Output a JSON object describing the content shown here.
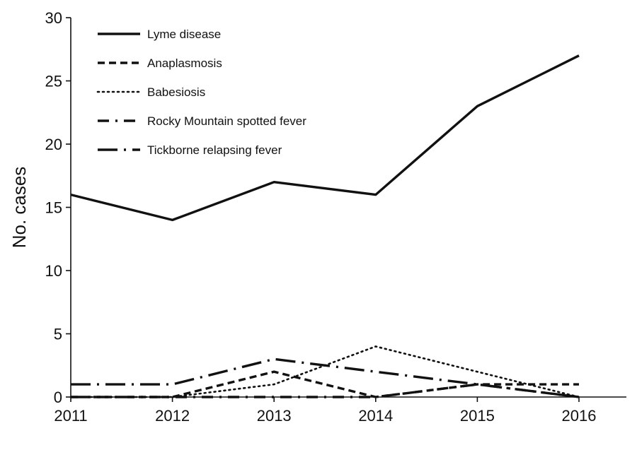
{
  "chart_data": {
    "type": "line",
    "ylabel": "No. cases",
    "xlabel": "",
    "title": "",
    "x": [
      "2011",
      "2012",
      "2013",
      "2014",
      "2015",
      "2016"
    ],
    "ylim": [
      0,
      30
    ],
    "yticks": [
      0,
      5,
      10,
      15,
      20,
      25,
      30
    ],
    "grid": false,
    "legend_position": "top-left",
    "series": [
      {
        "name": "Lyme disease",
        "values": [
          16,
          14,
          17,
          16,
          23,
          27
        ],
        "style": "solid",
        "color": "#111111"
      },
      {
        "name": "Anaplasmosis",
        "values": [
          0,
          0,
          2,
          0,
          1,
          1
        ],
        "style": "dashed",
        "color": "#111111"
      },
      {
        "name": "Babesiosis",
        "values": [
          0,
          0,
          1,
          4,
          2,
          0
        ],
        "style": "dotted",
        "color": "#111111"
      },
      {
        "name": "Rocky Mountain spotted fever",
        "values": [
          0,
          0,
          0,
          0,
          1,
          0
        ],
        "style": "dash-dot",
        "color": "#111111"
      },
      {
        "name": "Tickborne relapsing fever",
        "values": [
          1,
          1,
          3,
          2,
          1,
          0
        ],
        "style": "long-dash-dot",
        "color": "#111111"
      }
    ]
  }
}
